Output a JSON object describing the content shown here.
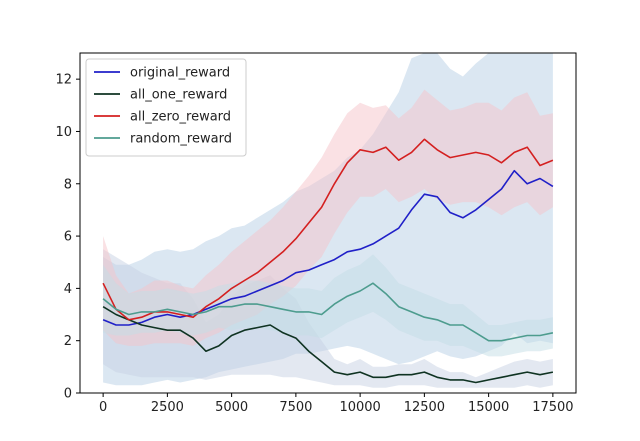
{
  "chart_data": {
    "type": "line",
    "title": "",
    "xlabel": "",
    "ylabel": "",
    "xlim": [
      -900,
      18400
    ],
    "ylim": [
      0,
      13
    ],
    "x_ticks": [
      0,
      2500,
      5000,
      7500,
      10000,
      12500,
      15000,
      17500
    ],
    "y_ticks": [
      0,
      2,
      4,
      6,
      8,
      10,
      12
    ],
    "grid": false,
    "legend_position": "upper-left",
    "series": [
      {
        "name": "original_reward",
        "color": "#2020c8",
        "band_color": "#b8cfe6",
        "x": [
          0,
          500,
          1000,
          1500,
          2000,
          2500,
          3000,
          3500,
          4000,
          4500,
          5000,
          5500,
          6000,
          6500,
          7000,
          7500,
          8000,
          8500,
          9000,
          9500,
          10000,
          10500,
          11000,
          11500,
          12000,
          12500,
          13000,
          13500,
          14000,
          14500,
          15000,
          15500,
          16000,
          16500,
          17000,
          17500
        ],
        "values": [
          2.8,
          2.6,
          2.6,
          2.7,
          2.9,
          3.0,
          2.9,
          3.0,
          3.2,
          3.4,
          3.6,
          3.7,
          3.9,
          4.1,
          4.3,
          4.6,
          4.7,
          4.9,
          5.1,
          5.4,
          5.5,
          5.7,
          6.0,
          6.3,
          7.0,
          7.6,
          7.5,
          6.9,
          6.7,
          7.0,
          7.4,
          7.8,
          8.5,
          8.0,
          8.2,
          7.9
        ],
        "band": [
          2.4,
          2.3,
          2.3,
          2.4,
          2.5,
          2.5,
          2.5,
          2.5,
          2.6,
          2.6,
          2.7,
          2.7,
          2.8,
          2.9,
          3.0,
          3.1,
          3.2,
          3.3,
          3.4,
          3.6,
          3.8,
          4.2,
          4.7,
          5.2,
          5.8,
          6.2,
          5.9,
          5.5,
          5.4,
          5.6,
          5.8,
          6.0,
          6.2,
          6.1,
          6.2,
          6.0
        ]
      },
      {
        "name": "all_one_reward",
        "color": "#0f3322",
        "band_color": "#c8d2e4",
        "x": [
          0,
          500,
          1000,
          1500,
          2000,
          2500,
          3000,
          3500,
          4000,
          4500,
          5000,
          5500,
          6000,
          6500,
          7000,
          7500,
          8000,
          8500,
          9000,
          9500,
          10000,
          10500,
          11000,
          11500,
          12000,
          12500,
          13000,
          13500,
          14000,
          14500,
          15000,
          15500,
          16000,
          16500,
          17000,
          17500
        ],
        "values": [
          3.3,
          3.0,
          2.8,
          2.6,
          2.5,
          2.4,
          2.4,
          2.1,
          1.6,
          1.8,
          2.2,
          2.4,
          2.5,
          2.6,
          2.3,
          2.1,
          1.6,
          1.2,
          0.8,
          0.7,
          0.8,
          0.6,
          0.6,
          0.7,
          0.7,
          0.8,
          0.6,
          0.5,
          0.5,
          0.4,
          0.5,
          0.6,
          0.7,
          0.8,
          0.7,
          0.8
        ],
        "band": [
          2.2,
          2.2,
          2.1,
          2.0,
          1.9,
          1.8,
          1.8,
          1.5,
          1.1,
          1.2,
          1.5,
          1.7,
          1.8,
          1.9,
          1.7,
          1.5,
          1.1,
          0.8,
          0.5,
          0.4,
          0.5,
          0.4,
          0.4,
          0.4,
          0.4,
          0.5,
          0.4,
          0.3,
          0.3,
          0.2,
          0.3,
          0.4,
          0.5,
          0.5,
          0.5,
          0.5
        ]
      },
      {
        "name": "all_zero_reward",
        "color": "#d42020",
        "band_color": "#f6c4ca",
        "x": [
          0,
          500,
          1000,
          1500,
          2000,
          2500,
          3000,
          3500,
          4000,
          4500,
          5000,
          5500,
          6000,
          6500,
          7000,
          7500,
          8000,
          8500,
          9000,
          9500,
          10000,
          10500,
          11000,
          11500,
          12000,
          12500,
          13000,
          13500,
          14000,
          14500,
          15000,
          15500,
          16000,
          16500,
          17000,
          17500
        ],
        "values": [
          4.2,
          3.2,
          2.8,
          2.9,
          3.1,
          3.1,
          3.0,
          2.9,
          3.3,
          3.6,
          4.0,
          4.3,
          4.6,
          5.0,
          5.4,
          5.9,
          6.5,
          7.1,
          8.0,
          8.8,
          9.3,
          9.2,
          9.4,
          8.9,
          9.2,
          9.7,
          9.3,
          9.0,
          9.1,
          9.2,
          9.1,
          8.8,
          9.2,
          9.4,
          8.7,
          8.9
        ],
        "band": [
          1.8,
          1.3,
          1.0,
          1.1,
          1.2,
          1.2,
          1.1,
          1.1,
          1.2,
          1.3,
          1.4,
          1.5,
          1.6,
          1.6,
          1.7,
          1.8,
          1.8,
          1.9,
          1.9,
          1.9,
          1.8,
          1.7,
          1.6,
          1.6,
          1.7,
          1.9,
          1.9,
          1.8,
          1.8,
          1.9,
          2.0,
          2.0,
          2.1,
          2.1,
          1.9,
          1.8
        ]
      },
      {
        "name": "random_reward",
        "color": "#4d9c8e",
        "band_color": "#c4dde6",
        "x": [
          0,
          500,
          1000,
          1500,
          2000,
          2500,
          3000,
          3500,
          4000,
          4500,
          5000,
          5500,
          6000,
          6500,
          7000,
          7500,
          8000,
          8500,
          9000,
          9500,
          10000,
          10500,
          11000,
          11500,
          12000,
          12500,
          13000,
          13500,
          14000,
          14500,
          15000,
          15500,
          16000,
          16500,
          17000,
          17500
        ],
        "values": [
          3.6,
          3.2,
          3.0,
          3.1,
          3.1,
          3.2,
          3.1,
          3.0,
          3.1,
          3.3,
          3.3,
          3.4,
          3.4,
          3.3,
          3.2,
          3.1,
          3.1,
          3.0,
          3.4,
          3.7,
          3.9,
          4.2,
          3.8,
          3.3,
          3.1,
          2.9,
          2.8,
          2.6,
          2.6,
          2.3,
          2.0,
          2.0,
          2.1,
          2.2,
          2.2,
          2.3
        ],
        "band": [
          1.3,
          1.0,
          0.8,
          0.8,
          0.8,
          0.8,
          0.8,
          0.8,
          0.8,
          0.8,
          0.9,
          0.9,
          0.9,
          0.9,
          0.9,
          0.9,
          0.9,
          0.9,
          1.0,
          1.0,
          1.0,
          1.1,
          1.0,
          0.9,
          0.9,
          0.9,
          0.8,
          0.8,
          0.8,
          0.7,
          0.6,
          0.6,
          0.6,
          0.6,
          0.6,
          0.6
        ]
      }
    ]
  }
}
